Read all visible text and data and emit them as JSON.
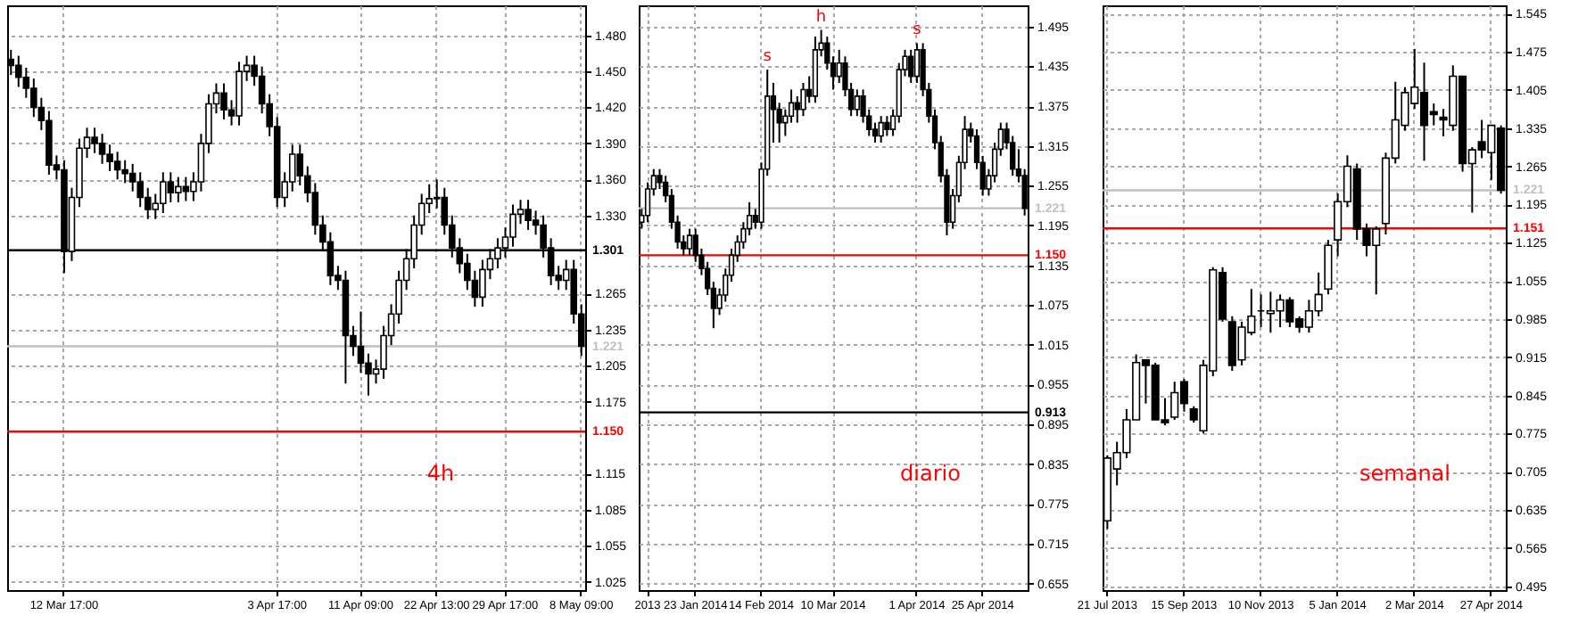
{
  "chart_data": [
    {
      "type": "candlestick",
      "color": "#000000",
      "grid": true,
      "categories": [
        null,
        null,
        null,
        null,
        null,
        null,
        null,
        "12 Mar 17:00",
        null,
        null,
        null,
        null,
        null,
        null,
        null,
        null,
        null,
        null,
        null,
        null,
        null,
        null,
        null,
        null,
        null,
        null,
        null,
        null,
        null,
        null,
        null,
        null,
        null,
        null,
        null,
        "3 Apr 17:00",
        null,
        null,
        null,
        null,
        null,
        null,
        null,
        null,
        null,
        null,
        "11 Apr 09:00",
        null,
        null,
        null,
        null,
        null,
        null,
        null,
        null,
        null,
        "22 Apr 13:00",
        null,
        null,
        null,
        null,
        null,
        null,
        null,
        null,
        "29 Apr 17:00",
        null,
        null,
        null,
        null,
        null,
        null,
        null,
        null,
        null,
        "8 May 09:00"
      ],
      "ohlc": [
        [
          1.46,
          1.468,
          1.447,
          1.455
        ],
        [
          1.455,
          1.463,
          1.437,
          1.445
        ],
        [
          1.445,
          1.453,
          1.428,
          1.436
        ],
        [
          1.436,
          1.444,
          1.412,
          1.42
        ],
        [
          1.42,
          1.428,
          1.401,
          1.409
        ],
        [
          1.409,
          1.417,
          1.364,
          1.372
        ],
        [
          1.372,
          1.38,
          1.36,
          1.368
        ],
        [
          1.368,
          1.376,
          1.282,
          1.3
        ],
        [
          1.3,
          1.353,
          1.292,
          1.345
        ],
        [
          1.345,
          1.394,
          1.337,
          1.386
        ],
        [
          1.386,
          1.403,
          1.378,
          1.395
        ],
        [
          1.395,
          1.403,
          1.382,
          1.39
        ],
        [
          1.39,
          1.398,
          1.373,
          1.381
        ],
        [
          1.381,
          1.389,
          1.367,
          1.375
        ],
        [
          1.375,
          1.383,
          1.36,
          1.368
        ],
        [
          1.368,
          1.376,
          1.357,
          1.365
        ],
        [
          1.365,
          1.373,
          1.35,
          1.358
        ],
        [
          1.358,
          1.366,
          1.337,
          1.345
        ],
        [
          1.345,
          1.353,
          1.327,
          1.335
        ],
        [
          1.335,
          1.348,
          1.327,
          1.34
        ],
        [
          1.34,
          1.366,
          1.332,
          1.358
        ],
        [
          1.358,
          1.366,
          1.341,
          1.349
        ],
        [
          1.349,
          1.362,
          1.341,
          1.354
        ],
        [
          1.354,
          1.362,
          1.342,
          1.35
        ],
        [
          1.35,
          1.366,
          1.342,
          1.358
        ],
        [
          1.358,
          1.398,
          1.35,
          1.39
        ],
        [
          1.39,
          1.431,
          1.382,
          1.423
        ],
        [
          1.423,
          1.44,
          1.415,
          1.432
        ],
        [
          1.432,
          1.44,
          1.41,
          1.418
        ],
        [
          1.418,
          1.426,
          1.405,
          1.413
        ],
        [
          1.413,
          1.458,
          1.405,
          1.45
        ],
        [
          1.45,
          1.463,
          1.442,
          1.455
        ],
        [
          1.455,
          1.463,
          1.438,
          1.446
        ],
        [
          1.446,
          1.454,
          1.415,
          1.423
        ],
        [
          1.423,
          1.431,
          1.396,
          1.404
        ],
        [
          1.404,
          1.412,
          1.337,
          1.345
        ],
        [
          1.345,
          1.366,
          1.337,
          1.358
        ],
        [
          1.358,
          1.389,
          1.35,
          1.381
        ],
        [
          1.381,
          1.389,
          1.355,
          1.363
        ],
        [
          1.363,
          1.371,
          1.341,
          1.349
        ],
        [
          1.349,
          1.357,
          1.314,
          1.322
        ],
        [
          1.322,
          1.33,
          1.3,
          1.308
        ],
        [
          1.308,
          1.316,
          1.272,
          1.28
        ],
        [
          1.28,
          1.288,
          1.268,
          1.276
        ],
        [
          1.276,
          1.284,
          1.19,
          1.23
        ],
        [
          1.23,
          1.238,
          1.213,
          1.221
        ],
        [
          1.221,
          1.25,
          1.199,
          1.207
        ],
        [
          1.207,
          1.215,
          1.18,
          1.198
        ],
        [
          1.198,
          1.21,
          1.19,
          1.202
        ],
        [
          1.202,
          1.238,
          1.194,
          1.23
        ],
        [
          1.23,
          1.256,
          1.222,
          1.248
        ],
        [
          1.248,
          1.284,
          1.24,
          1.276
        ],
        [
          1.276,
          1.302,
          1.268,
          1.294
        ],
        [
          1.294,
          1.33,
          1.286,
          1.322
        ],
        [
          1.322,
          1.348,
          1.314,
          1.34
        ],
        [
          1.34,
          1.356,
          1.332,
          1.344
        ],
        [
          1.344,
          1.36,
          1.336,
          1.345
        ],
        [
          1.345,
          1.353,
          1.314,
          1.322
        ],
        [
          1.322,
          1.33,
          1.295,
          1.303
        ],
        [
          1.303,
          1.311,
          1.282,
          1.29
        ],
        [
          1.29,
          1.298,
          1.268,
          1.276
        ],
        [
          1.276,
          1.284,
          1.254,
          1.262
        ],
        [
          1.262,
          1.293,
          1.254,
          1.285
        ],
        [
          1.285,
          1.302,
          1.277,
          1.294
        ],
        [
          1.294,
          1.311,
          1.286,
          1.303
        ],
        [
          1.303,
          1.32,
          1.295,
          1.312
        ],
        [
          1.312,
          1.339,
          1.304,
          1.331
        ],
        [
          1.331,
          1.343,
          1.323,
          1.335
        ],
        [
          1.335,
          1.343,
          1.318,
          1.326
        ],
        [
          1.326,
          1.334,
          1.314,
          1.322
        ],
        [
          1.322,
          1.33,
          1.295,
          1.303
        ],
        [
          1.303,
          1.311,
          1.272,
          1.28
        ],
        [
          1.28,
          1.288,
          1.268,
          1.276
        ],
        [
          1.276,
          1.293,
          1.268,
          1.285
        ],
        [
          1.285,
          1.293,
          1.24,
          1.248
        ],
        [
          1.248,
          1.256,
          1.213,
          1.221
        ]
      ],
      "ylim": [
        1.018,
        1.505
      ],
      "yticks": [
        1.025,
        1.055,
        1.085,
        1.115,
        1.175,
        1.205,
        1.235,
        1.265,
        {
          "value": 1.33,
          "label": "1.330"
        },
        {
          "value": 1.36,
          "label": "1.360"
        },
        {
          "value": 1.39,
          "label": "1.390"
        },
        {
          "value": 1.42,
          "label": "1.420"
        },
        {
          "value": 1.45,
          "label": "1.450"
        },
        {
          "value": 1.48,
          "label": "1.480"
        }
      ],
      "ref_lines": [
        {
          "axis": "y",
          "value": 1.301,
          "label": "1.301",
          "color": "#000000"
        },
        {
          "axis": "y",
          "value": 1.221,
          "label": "1.221",
          "color": "#c0c0c0"
        },
        {
          "axis": "y",
          "value": 1.15,
          "label": "1.150",
          "color": "#ff0000"
        }
      ],
      "annotations": [
        "4h"
      ]
    },
    {
      "type": "candlestick",
      "color": "#000000",
      "grid": true,
      "categories": [
        null,
        "2013",
        null,
        null,
        null,
        null,
        null,
        null,
        null,
        "23 Jan 2014",
        null,
        null,
        null,
        null,
        null,
        null,
        null,
        null,
        null,
        null,
        "14 Feb 2014",
        null,
        null,
        null,
        null,
        null,
        null,
        null,
        null,
        null,
        null,
        null,
        "10 Mar 2014",
        null,
        null,
        null,
        null,
        null,
        null,
        null,
        null,
        null,
        null,
        null,
        null,
        null,
        "1 Apr 2014",
        null,
        null,
        null,
        null,
        null,
        null,
        null,
        null,
        null,
        null,
        "25 Apr 2014",
        null,
        null,
        null,
        null,
        null,
        null,
        null
      ],
      "ohlc": [
        [
          1.2,
          1.22,
          1.19,
          1.21
        ],
        [
          1.21,
          1.26,
          1.2,
          1.25
        ],
        [
          1.25,
          1.28,
          1.24,
          1.27
        ],
        [
          1.27,
          1.28,
          1.25,
          1.26
        ],
        [
          1.26,
          1.27,
          1.23,
          1.24
        ],
        [
          1.24,
          1.25,
          1.19,
          1.2
        ],
        [
          1.2,
          1.21,
          1.16,
          1.17
        ],
        [
          1.17,
          1.18,
          1.15,
          1.16
        ],
        [
          1.16,
          1.19,
          1.15,
          1.18
        ],
        [
          1.18,
          1.19,
          1.14,
          1.15
        ],
        [
          1.15,
          1.16,
          1.12,
          1.13
        ],
        [
          1.13,
          1.14,
          1.09,
          1.1
        ],
        [
          1.1,
          1.11,
          1.04,
          1.07
        ],
        [
          1.07,
          1.1,
          1.06,
          1.09
        ],
        [
          1.09,
          1.13,
          1.08,
          1.12
        ],
        [
          1.12,
          1.16,
          1.11,
          1.15
        ],
        [
          1.15,
          1.18,
          1.14,
          1.17
        ],
        [
          1.17,
          1.2,
          1.16,
          1.19
        ],
        [
          1.19,
          1.23,
          1.18,
          1.21
        ],
        [
          1.21,
          1.22,
          1.19,
          1.2
        ],
        [
          1.2,
          1.29,
          1.19,
          1.28
        ],
        [
          1.28,
          1.43,
          1.27,
          1.39
        ],
        [
          1.39,
          1.41,
          1.32,
          1.37
        ],
        [
          1.37,
          1.38,
          1.32,
          1.35
        ],
        [
          1.35,
          1.37,
          1.33,
          1.36
        ],
        [
          1.36,
          1.4,
          1.35,
          1.38
        ],
        [
          1.38,
          1.39,
          1.35,
          1.37
        ],
        [
          1.37,
          1.41,
          1.36,
          1.4
        ],
        [
          1.4,
          1.42,
          1.38,
          1.39
        ],
        [
          1.39,
          1.48,
          1.38,
          1.46
        ],
        [
          1.46,
          1.49,
          1.45,
          1.47
        ],
        [
          1.47,
          1.48,
          1.43,
          1.44
        ],
        [
          1.44,
          1.45,
          1.4,
          1.42
        ],
        [
          1.42,
          1.46,
          1.41,
          1.44
        ],
        [
          1.44,
          1.45,
          1.39,
          1.4
        ],
        [
          1.4,
          1.41,
          1.36,
          1.37
        ],
        [
          1.37,
          1.4,
          1.36,
          1.39
        ],
        [
          1.39,
          1.4,
          1.35,
          1.36
        ],
        [
          1.36,
          1.37,
          1.33,
          1.34
        ],
        [
          1.34,
          1.35,
          1.32,
          1.33
        ],
        [
          1.33,
          1.36,
          1.32,
          1.35
        ],
        [
          1.35,
          1.36,
          1.33,
          1.34
        ],
        [
          1.34,
          1.37,
          1.33,
          1.36
        ],
        [
          1.36,
          1.44,
          1.35,
          1.43
        ],
        [
          1.43,
          1.46,
          1.42,
          1.45
        ],
        [
          1.45,
          1.46,
          1.41,
          1.42
        ],
        [
          1.42,
          1.47,
          1.41,
          1.46
        ],
        [
          1.46,
          1.47,
          1.39,
          1.4
        ],
        [
          1.4,
          1.41,
          1.35,
          1.36
        ],
        [
          1.36,
          1.37,
          1.31,
          1.32
        ],
        [
          1.32,
          1.33,
          1.26,
          1.27
        ],
        [
          1.27,
          1.28,
          1.18,
          1.2
        ],
        [
          1.2,
          1.25,
          1.19,
          1.24
        ],
        [
          1.24,
          1.3,
          1.23,
          1.29
        ],
        [
          1.29,
          1.36,
          1.28,
          1.34
        ],
        [
          1.34,
          1.35,
          1.32,
          1.33
        ],
        [
          1.33,
          1.34,
          1.28,
          1.29
        ],
        [
          1.29,
          1.3,
          1.24,
          1.25
        ],
        [
          1.25,
          1.28,
          1.24,
          1.27
        ],
        [
          1.27,
          1.32,
          1.26,
          1.31
        ],
        [
          1.31,
          1.35,
          1.3,
          1.34
        ],
        [
          1.34,
          1.35,
          1.31,
          1.32
        ],
        [
          1.32,
          1.33,
          1.27,
          1.28
        ],
        [
          1.28,
          1.31,
          1.26,
          1.27
        ],
        [
          1.27,
          1.28,
          1.21,
          1.221
        ]
      ],
      "ylim": [
        0.645,
        1.527
      ],
      "yticks": [
        0.655,
        0.715,
        0.775,
        0.835,
        0.895,
        0.955,
        1.015,
        1.075,
        1.135,
        1.195,
        1.255,
        1.315,
        1.375,
        1.435,
        1.495
      ],
      "ref_lines": [
        {
          "axis": "y",
          "value": 1.221,
          "label": "1.221",
          "color": "#c0c0c0"
        },
        {
          "axis": "y",
          "value": 1.15,
          "label": "1.150",
          "color": "#ff0000"
        },
        {
          "axis": "y",
          "value": 0.913,
          "label": "0.913",
          "color": "#000000"
        }
      ],
      "annotations": [
        {
          "text": "s",
          "y": 1.43
        },
        {
          "text": "h",
          "y": 1.49
        },
        {
          "text": "s",
          "y": 1.47
        },
        "diario"
      ]
    },
    {
      "type": "candlestick",
      "color": "#000000",
      "grid": true,
      "categories": [
        "21 Jul 2013",
        null,
        null,
        null,
        null,
        null,
        null,
        null,
        "15 Sep 2013",
        null,
        null,
        null,
        null,
        null,
        null,
        null,
        "10 Nov 2013",
        null,
        null,
        null,
        null,
        null,
        null,
        null,
        "5 Jan 2014",
        null,
        null,
        null,
        null,
        null,
        null,
        null,
        "2 Mar 2014",
        null,
        null,
        null,
        null,
        null,
        null,
        null,
        "27 Apr 2014",
        null
      ],
      "ohlc": [
        [
          0.615,
          0.735,
          0.6,
          0.73
        ],
        [
          0.71,
          0.76,
          0.68,
          0.74
        ],
        [
          0.74,
          0.82,
          0.73,
          0.8
        ],
        [
          0.8,
          0.92,
          0.8,
          0.905
        ],
        [
          0.91,
          0.91,
          0.83,
          0.9
        ],
        [
          0.9,
          0.905,
          0.8,
          0.8
        ],
        [
          0.8,
          0.84,
          0.79,
          0.795
        ],
        [
          0.805,
          0.87,
          0.8,
          0.85
        ],
        [
          0.87,
          0.875,
          0.815,
          0.83
        ],
        [
          0.82,
          0.825,
          0.795,
          0.8
        ],
        [
          0.78,
          0.91,
          0.775,
          0.9
        ],
        [
          0.89,
          1.08,
          0.88,
          1.075
        ],
        [
          1.07,
          1.08,
          0.98,
          0.985
        ],
        [
          0.98,
          0.99,
          0.89,
          0.9
        ],
        [
          0.91,
          0.98,
          0.9,
          0.97
        ],
        [
          0.96,
          1.04,
          0.955,
          0.99
        ],
        [
          1.0,
          1.03,
          0.97,
          1.0
        ],
        [
          0.995,
          1.035,
          0.96,
          1.0
        ],
        [
          1.0,
          1.03,
          0.97,
          1.02
        ],
        [
          1.02,
          1.025,
          0.97,
          0.98
        ],
        [
          0.985,
          0.99,
          0.96,
          0.97
        ],
        [
          0.97,
          1.02,
          0.96,
          1.0
        ],
        [
          1.0,
          1.07,
          0.99,
          1.03
        ],
        [
          1.04,
          1.13,
          1.03,
          1.12
        ],
        [
          1.13,
          1.215,
          1.1,
          1.2
        ],
        [
          1.2,
          1.285,
          1.19,
          1.265
        ],
        [
          1.26,
          1.27,
          1.13,
          1.15
        ],
        [
          1.15,
          1.16,
          1.1,
          1.12
        ],
        [
          1.12,
          1.155,
          1.03,
          1.15
        ],
        [
          1.16,
          1.29,
          1.14,
          1.28
        ],
        [
          1.28,
          1.42,
          1.27,
          1.35
        ],
        [
          1.34,
          1.41,
          1.33,
          1.4
        ],
        [
          1.38,
          1.48,
          1.37,
          1.41
        ],
        [
          1.4,
          1.455,
          1.275,
          1.34
        ],
        [
          1.365,
          1.38,
          1.34,
          1.36
        ],
        [
          1.355,
          1.37,
          1.32,
          1.35
        ],
        [
          1.34,
          1.45,
          1.33,
          1.43
        ],
        [
          1.43,
          1.43,
          1.255,
          1.27
        ],
        [
          1.27,
          1.3,
          1.18,
          1.295
        ],
        [
          1.31,
          1.35,
          1.28,
          1.295
        ],
        [
          1.29,
          1.34,
          1.24,
          1.34
        ],
        [
          1.335,
          1.34,
          1.215,
          1.221
        ]
      ],
      "ylim": [
        0.488,
        1.56
      ],
      "yticks": [
        0.495,
        0.565,
        0.635,
        0.705,
        0.775,
        0.845,
        0.915,
        0.985,
        1.055,
        1.125,
        1.195,
        1.265,
        1.335,
        1.405,
        1.475,
        1.545
      ],
      "ref_lines": [
        {
          "axis": "y",
          "value": 1.221,
          "label": "1.221",
          "color": "#c0c0c0"
        },
        {
          "axis": "y",
          "value": 1.151,
          "label": "1.151",
          "color": "#ff0000"
        }
      ],
      "annotations": [
        "semanal"
      ]
    }
  ]
}
